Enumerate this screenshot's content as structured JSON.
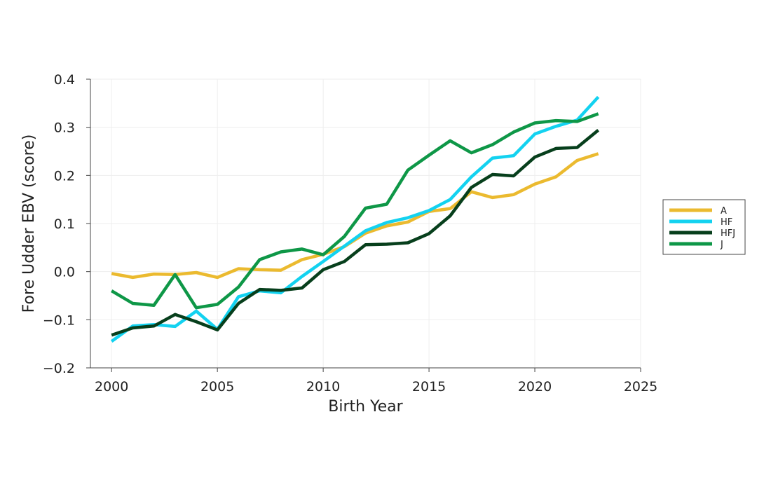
{
  "chart_data": {
    "type": "line",
    "title": "",
    "xlabel": "Birth Year",
    "ylabel": "Fore Udder EBV (score)",
    "xlim": [
      1999,
      2025
    ],
    "ylim": [
      -0.2,
      0.4
    ],
    "xticks": [
      2000,
      2005,
      2010,
      2015,
      2020,
      2025
    ],
    "xtick_labels": [
      "2000",
      "2005",
      "2010",
      "2015",
      "2020",
      "2025"
    ],
    "yticks": [
      -0.2,
      -0.1,
      0.0,
      0.1,
      0.2,
      0.3,
      0.4
    ],
    "ytick_labels": [
      "−0.2",
      "−0.1",
      "0.0",
      "0.1",
      "0.2",
      "0.3",
      "0.4"
    ],
    "grid": true,
    "legend_position": "right",
    "x": [
      2000,
      2001,
      2002,
      2003,
      2004,
      2005,
      2006,
      2007,
      2008,
      2009,
      2010,
      2011,
      2012,
      2013,
      2014,
      2015,
      2016,
      2017,
      2018,
      2019,
      2020,
      2021,
      2022,
      2023
    ],
    "series": [
      {
        "name": "A",
        "color": "#ebba2f",
        "values": [
          -0.004,
          -0.012,
          -0.005,
          -0.006,
          -0.002,
          -0.012,
          0.006,
          0.004,
          0.003,
          0.025,
          0.036,
          0.052,
          0.08,
          0.095,
          0.103,
          0.125,
          0.131,
          0.166,
          0.154,
          0.16,
          0.182,
          0.197,
          0.231,
          0.245
        ]
      },
      {
        "name": "HF",
        "color": "#13d2f0",
        "values": [
          -0.145,
          -0.113,
          -0.11,
          -0.114,
          -0.082,
          -0.12,
          -0.052,
          -0.04,
          -0.044,
          -0.01,
          0.021,
          0.053,
          0.085,
          0.102,
          0.112,
          0.127,
          0.15,
          0.197,
          0.236,
          0.241,
          0.286,
          0.302,
          0.315,
          0.363
        ]
      },
      {
        "name": "HFJ",
        "color": "#073f1c",
        "values": [
          -0.132,
          -0.117,
          -0.113,
          -0.089,
          -0.104,
          -0.121,
          -0.066,
          -0.037,
          -0.039,
          -0.034,
          0.004,
          0.021,
          0.056,
          0.057,
          0.06,
          0.079,
          0.116,
          0.175,
          0.202,
          0.199,
          0.238,
          0.256,
          0.258,
          0.294
        ]
      },
      {
        "name": "J",
        "color": "#0e9747",
        "values": [
          -0.04,
          -0.066,
          -0.07,
          -0.006,
          -0.075,
          -0.068,
          -0.032,
          0.025,
          0.041,
          0.047,
          0.035,
          0.073,
          0.132,
          0.14,
          0.211,
          0.242,
          0.272,
          0.247,
          0.264,
          0.29,
          0.309,
          0.314,
          0.312,
          0.328
        ]
      }
    ]
  }
}
